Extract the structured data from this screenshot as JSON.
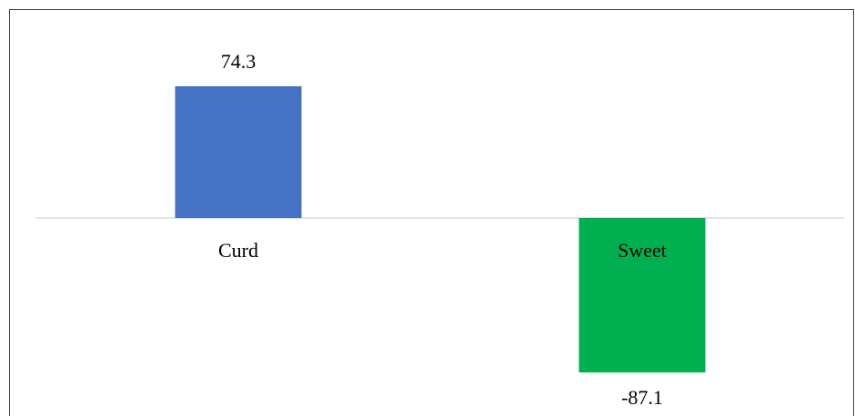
{
  "chart_data": {
    "type": "bar",
    "categories": [
      "Curd",
      "Sweet"
    ],
    "values": [
      74.3,
      -87.1
    ],
    "colors": [
      "#4472c4",
      "#00b050"
    ]
  }
}
